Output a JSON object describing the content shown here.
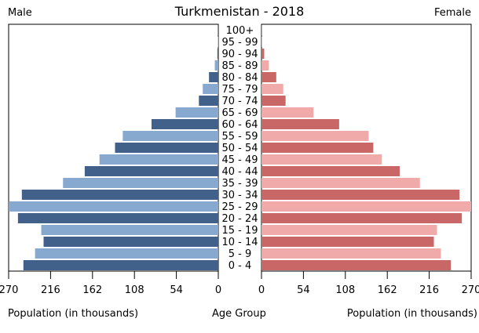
{
  "header": {
    "title": "Turkmenistan - 2018",
    "male_label": "Male",
    "female_label": "Female"
  },
  "footer": {
    "left_axis_label": "Population (in thousands)",
    "center_label": "Age Group",
    "right_axis_label": "Population (in thousands)"
  },
  "chart_data": {
    "type": "bar",
    "title": "Turkmenistan - 2018",
    "categories": [
      "100+",
      "95 - 99",
      "90 - 94",
      "85 - 89",
      "80 - 84",
      "75 - 79",
      "70 - 74",
      "65 - 69",
      "60 - 64",
      "55 - 59",
      "50 - 54",
      "45 - 49",
      "40 - 44",
      "35 - 39",
      "30 - 34",
      "25 - 29",
      "20 - 24",
      "15 - 19",
      "10 - 14",
      "5 - 9",
      "0 - 4"
    ],
    "series": [
      {
        "name": "Male",
        "values": [
          0.2,
          0.5,
          1.2,
          4.5,
          12,
          20,
          25,
          55,
          86,
          123,
          133,
          153,
          172,
          200,
          253,
          270,
          258,
          228,
          225,
          236,
          251
        ]
      },
      {
        "name": "Female",
        "values": [
          0.3,
          1,
          3.5,
          9.5,
          19,
          28,
          31,
          67,
          100,
          138,
          144,
          155,
          178,
          204,
          255,
          270,
          258,
          226,
          222,
          231,
          244
        ]
      }
    ],
    "xlabel": "Population (in thousands)",
    "ylabel": "Age Group",
    "xlim": [
      0,
      270
    ],
    "ticks": [
      270,
      216,
      162,
      108,
      54,
      0
    ],
    "colors": {
      "male_dark": "#41618a",
      "male_light": "#87a9cf",
      "female_dark": "#c96767",
      "female_light": "#f0aaaa",
      "axis": "#000000"
    }
  }
}
